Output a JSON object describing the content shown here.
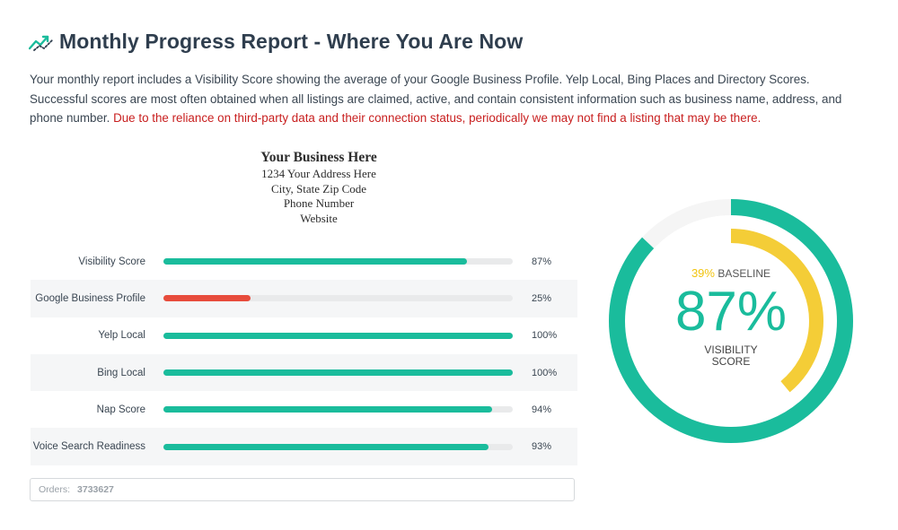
{
  "header": {
    "title": "Monthly Progress Report - Where You Are Now",
    "icon": "trend-line-icon"
  },
  "intro": {
    "text": "Your monthly report includes a Visibility Score showing the average of your Google Business Profile. Yelp Local, Bing Places and Directory Scores. Successful scores are most often obtained when all listings are claimed, active, and contain consistent information such as business name, address, and phone number. ",
    "warning": "Due to the reliance on third-party data and their connection status, periodically we may not find a listing that may be there."
  },
  "business": {
    "name": "Your Business Here",
    "address": "1234 Your Address Here",
    "city": "City, State  Zip Code",
    "phone": "Phone Number",
    "website": "Website"
  },
  "scores": [
    {
      "label": "Visibility Score",
      "value": 87,
      "pct": "87%",
      "color": "#1abc9c"
    },
    {
      "label": "Google Business Profile",
      "value": 25,
      "pct": "25%",
      "color": "#e74c3c"
    },
    {
      "label": "Yelp Local",
      "value": 100,
      "pct": "100%",
      "color": "#1abc9c"
    },
    {
      "label": "Bing Local",
      "value": 100,
      "pct": "100%",
      "color": "#1abc9c"
    },
    {
      "label": "Nap Score",
      "value": 94,
      "pct": "94%",
      "color": "#1abc9c"
    },
    {
      "label": "Voice Search Readiness",
      "value": 93,
      "pct": "93%",
      "color": "#1abc9c"
    }
  ],
  "orders": {
    "label": "Orders:",
    "value": "3733627"
  },
  "gauge": {
    "baseline_value": "39%",
    "baseline_label": "BASELINE",
    "baseline_fraction": 0.39,
    "score_value": "87%",
    "score_fraction": 0.87,
    "score_label_line1": "VISIBILITY",
    "score_label_line2": "SCORE",
    "score_color": "#1abc9c",
    "baseline_color": "#f4cd37",
    "track_color": "#f5f5f5"
  }
}
